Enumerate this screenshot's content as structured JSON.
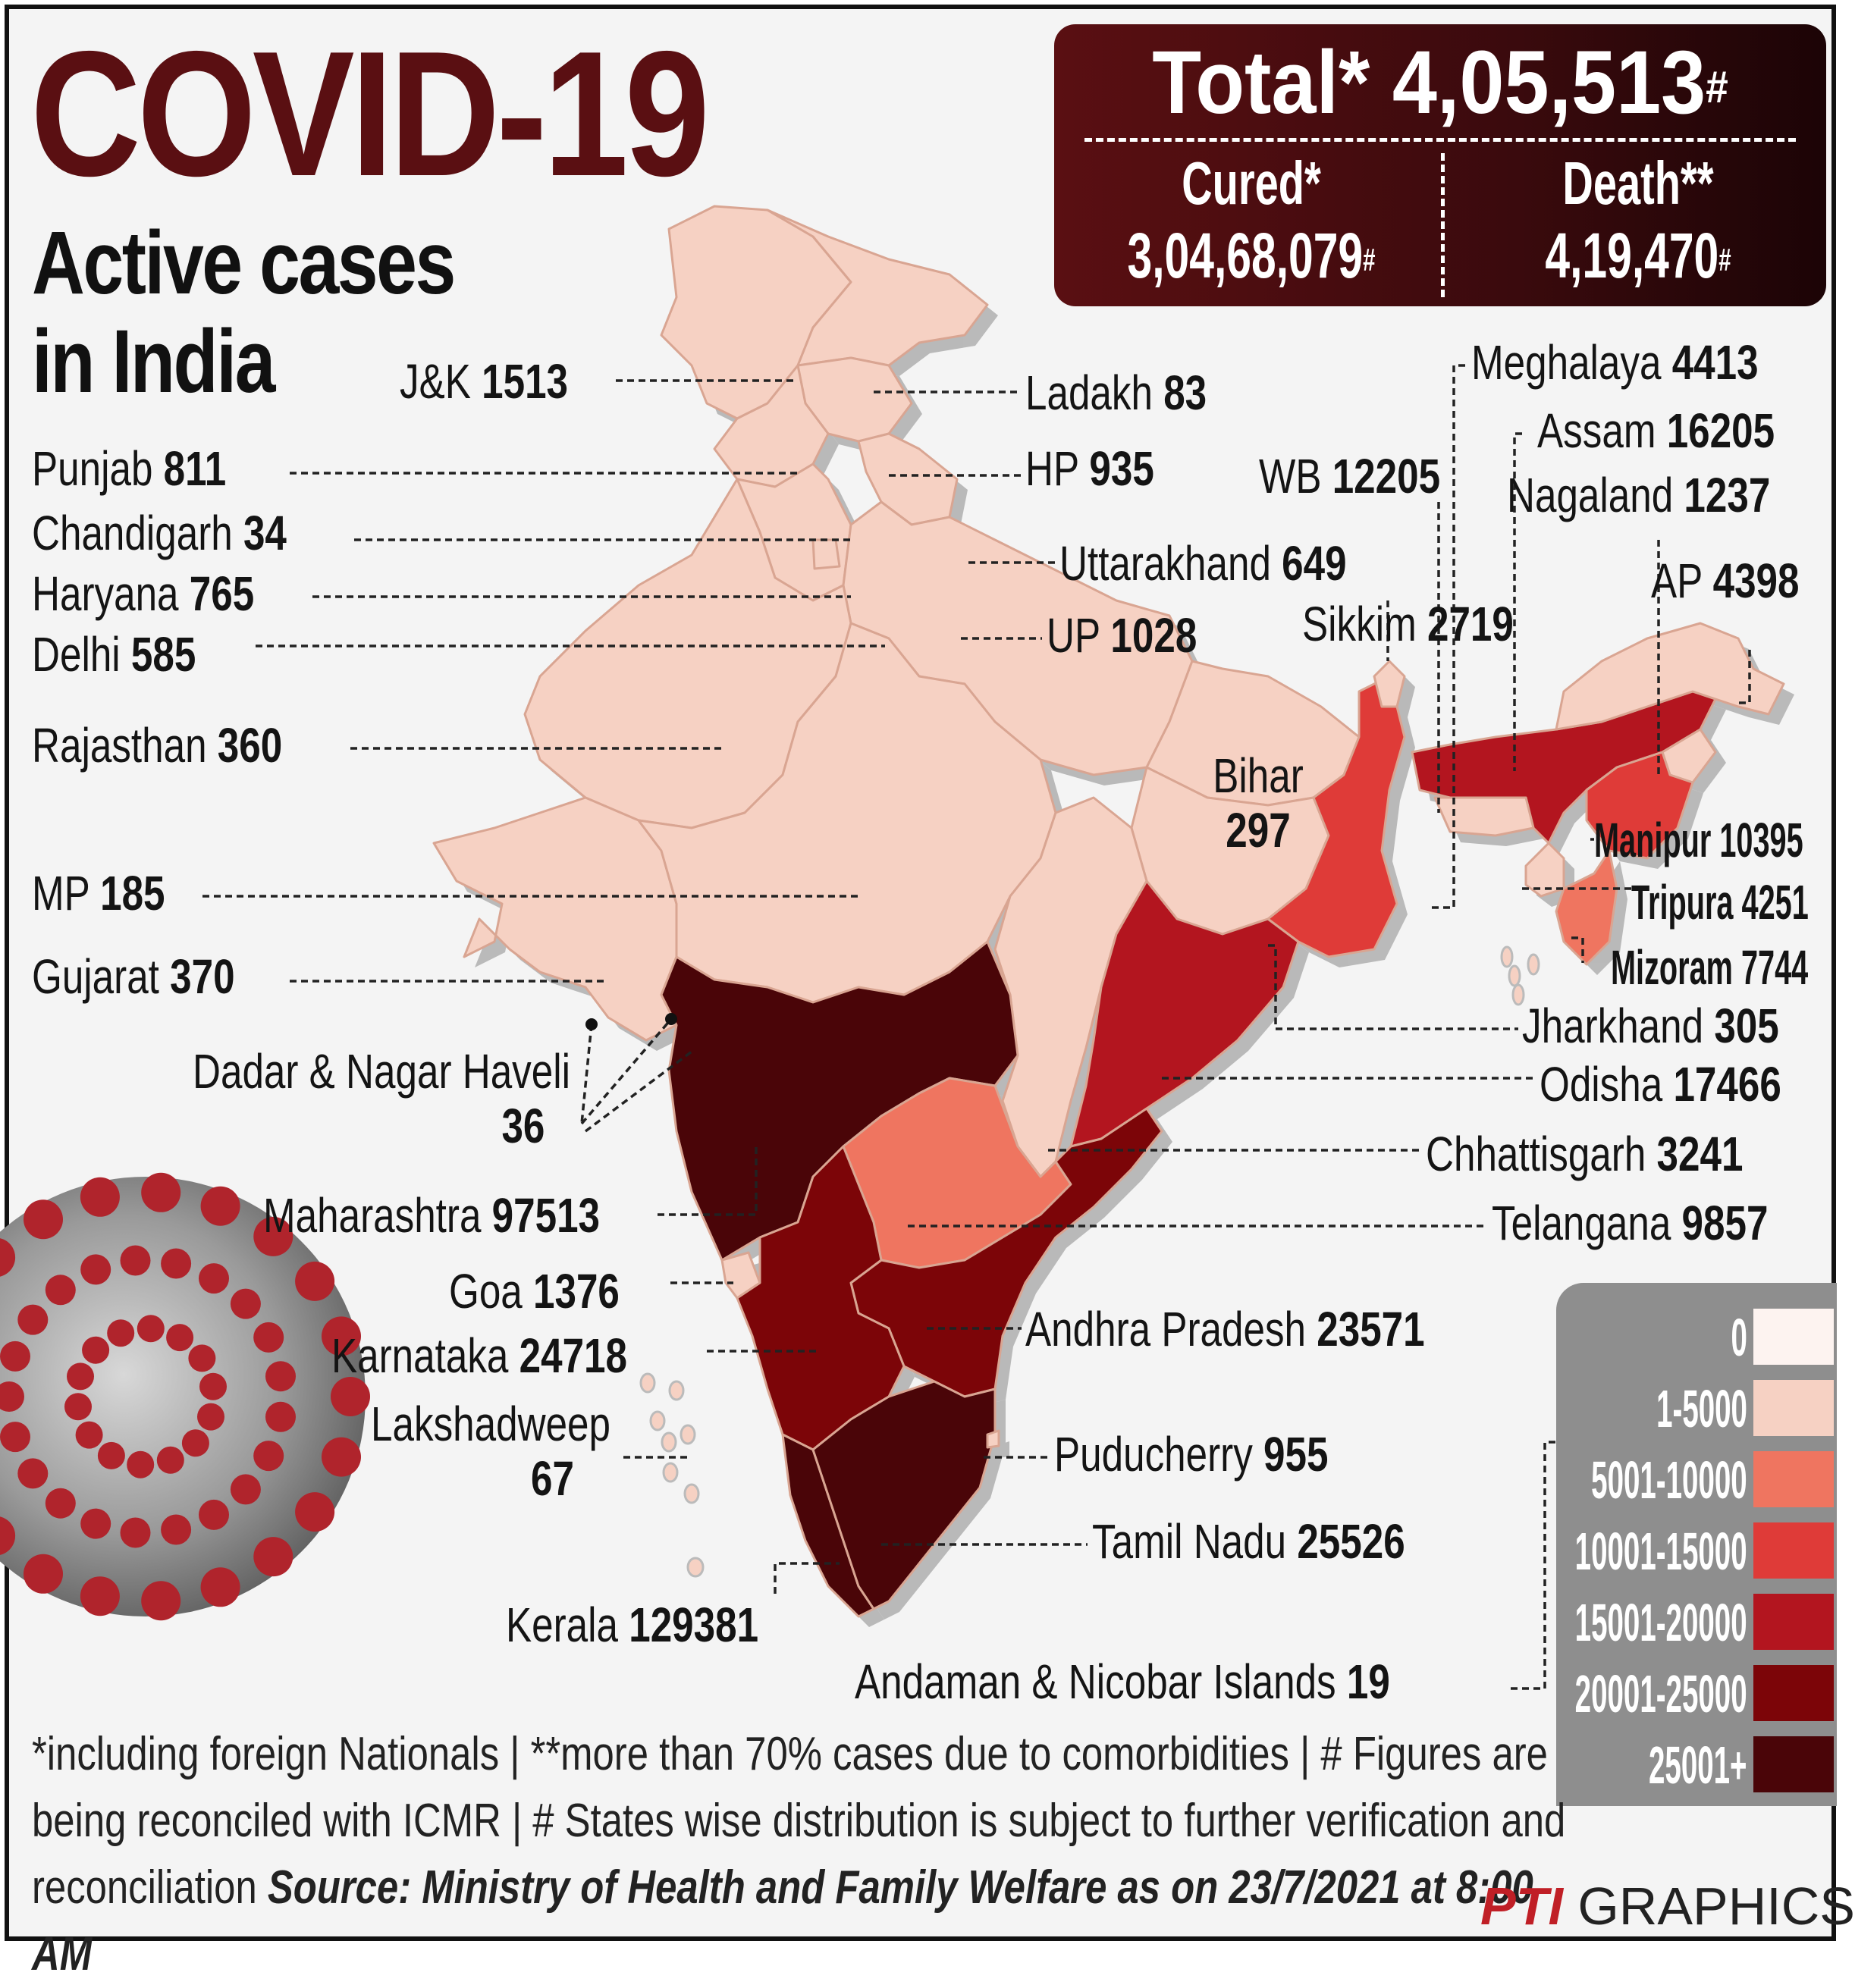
{
  "title": "COVID-19",
  "subtitle": [
    "Active cases",
    "in India"
  ],
  "summary": {
    "total_label": "Total*",
    "total_value": "4,05,513",
    "total_mark": "#",
    "cured_label": "Cured*",
    "cured_value": "3,04,68,079",
    "cured_mark": "#",
    "death_label": "Death**",
    "death_value": "4,19,470",
    "death_mark": "#"
  },
  "states": [
    {
      "id": "jk",
      "name": "J&K",
      "value": "1513",
      "category": 1
    },
    {
      "id": "ladakh",
      "name": "Ladakh",
      "value": "83",
      "category": 1
    },
    {
      "id": "punjab",
      "name": "Punjab",
      "value": "811",
      "category": 1
    },
    {
      "id": "hp",
      "name": "HP",
      "value": "935",
      "category": 1
    },
    {
      "id": "chandigarh",
      "name": "Chandigarh",
      "value": "34",
      "category": 1
    },
    {
      "id": "haryana",
      "name": "Haryana",
      "value": "765",
      "category": 1
    },
    {
      "id": "uttarakhand",
      "name": "Uttarakhand",
      "value": "649",
      "category": 1
    },
    {
      "id": "delhi",
      "name": "Delhi",
      "value": "585",
      "category": 1
    },
    {
      "id": "up",
      "name": "UP",
      "value": "1028",
      "category": 1
    },
    {
      "id": "rajasthan",
      "name": "Rajasthan",
      "value": "360",
      "category": 1
    },
    {
      "id": "mp",
      "name": "MP",
      "value": "185",
      "category": 1
    },
    {
      "id": "gujarat",
      "name": "Gujarat",
      "value": "370",
      "category": 1
    },
    {
      "id": "dnh",
      "name": "Dadar & Nagar Haveli",
      "value": "36",
      "category": 1
    },
    {
      "id": "maharashtra",
      "name": "Maharashtra",
      "value": "97513",
      "category": 6
    },
    {
      "id": "goa",
      "name": "Goa",
      "value": "1376",
      "category": 1
    },
    {
      "id": "karnataka",
      "name": "Karnataka",
      "value": "24718",
      "category": 5
    },
    {
      "id": "lakshadweep",
      "name": "Lakshadweep",
      "value": "67",
      "category": 1
    },
    {
      "id": "kerala",
      "name": "Kerala",
      "value": "129381",
      "category": 6
    },
    {
      "id": "meghalaya",
      "name": "Meghalaya",
      "value": "4413",
      "category": 1
    },
    {
      "id": "assam",
      "name": "Assam",
      "value": "16205",
      "category": 4
    },
    {
      "id": "nagaland",
      "name": "Nagaland",
      "value": "1237",
      "category": 1
    },
    {
      "id": "wb",
      "name": "WB",
      "value": "12205",
      "category": 3
    },
    {
      "id": "ap_arunachal",
      "name": "AP",
      "value": "4398",
      "category": 1
    },
    {
      "id": "sikkim",
      "name": "Sikkim",
      "value": "2719",
      "category": 1
    },
    {
      "id": "bihar",
      "name": "Bihar",
      "value": "297",
      "category": 1
    },
    {
      "id": "manipur",
      "name": "Manipur",
      "value": "10395",
      "category": 3
    },
    {
      "id": "tripura",
      "name": "Tripura",
      "value": "4251",
      "category": 1
    },
    {
      "id": "mizoram",
      "name": "Mizoram",
      "value": "7744",
      "category": 2
    },
    {
      "id": "jharkhand",
      "name": "Jharkhand",
      "value": "305",
      "category": 1
    },
    {
      "id": "odisha",
      "name": "Odisha",
      "value": "17466",
      "category": 4
    },
    {
      "id": "chhattisgarh",
      "name": "Chhattisgarh",
      "value": "3241",
      "category": 1
    },
    {
      "id": "telangana",
      "name": "Telangana",
      "value": "9857",
      "category": 2
    },
    {
      "id": "andhra",
      "name": "Andhra Pradesh",
      "value": "23571",
      "category": 5
    },
    {
      "id": "puducherry",
      "name": "Puducherry",
      "value": "955",
      "category": 1
    },
    {
      "id": "tamilnadu",
      "name": "Tamil Nadu",
      "value": "25526",
      "category": 6
    },
    {
      "id": "andaman",
      "name": "Andaman & Nicobar Islands",
      "value": "19",
      "category": 1
    }
  ],
  "legend": [
    {
      "label": "0",
      "color": "#fdf3f0"
    },
    {
      "label": "1-5000",
      "color": "#f6d1c3"
    },
    {
      "label": "5001-10000",
      "color": "#ef7560"
    },
    {
      "label": "10001-15000",
      "color": "#df3b38"
    },
    {
      "label": "15001-20000",
      "color": "#b3151f"
    },
    {
      "label": "20001-25000",
      "color": "#7c0508"
    },
    {
      "label": "25001+",
      "color": "#4a0508"
    }
  ],
  "footnote": {
    "text": "*including foreign Nationals | **more than 70% cases due to comorbidities | # Figures are being reconciled with ICMR | # States wise distribution is subject to further verification and reconciliation",
    "source": "Source: Ministry of Health and Family Welfare as on 23/7/2021 at 8:00 AM"
  },
  "credit": {
    "logo": "PTI",
    "text": "GRAPHICS"
  }
}
